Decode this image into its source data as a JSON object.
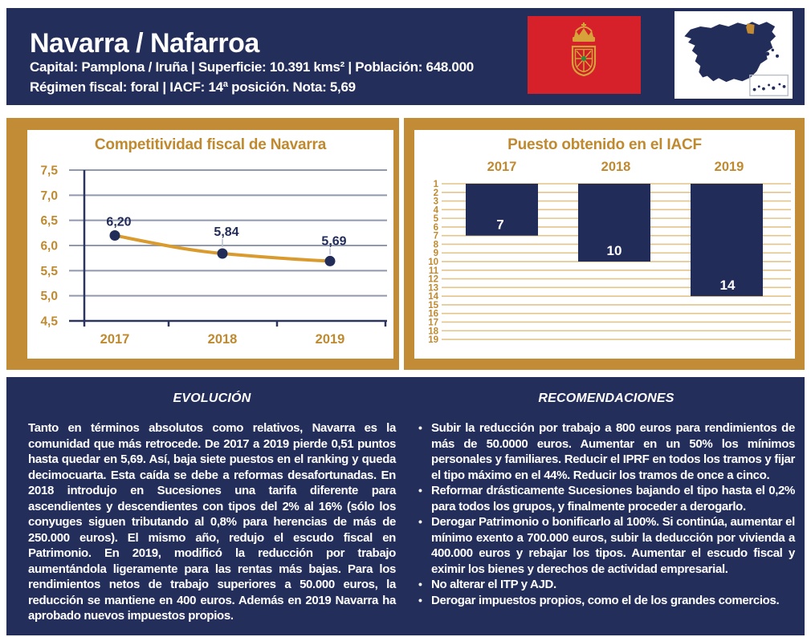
{
  "header": {
    "title": "Navarra / Nafarroa",
    "info_line1": "Capital: Pamplona / Iruña | Superficie: 10.391 kms² | Población: 648.000",
    "info_line2": "Régimen fiscal: foral | IACF: 14ª posición. Nota: 5,69"
  },
  "colors": {
    "navy": "#242E5B",
    "bar_navy": "#222C59",
    "gold_band": "#C28B35",
    "gold_text": "#BF8A2F",
    "line_gold": "#D99A2E",
    "grid_gray_blue": "#9098AE",
    "grid_tan": "#E3C48A",
    "axis_navy": "#2B355E",
    "flag_red": "#D6202A",
    "white": "#FFFFFF"
  },
  "chart_data": [
    {
      "type": "line",
      "title": "Competitividad fiscal de Navarra",
      "x": [
        "2017",
        "2018",
        "2019"
      ],
      "values": [
        6.2,
        5.84,
        5.69
      ],
      "point_labels": [
        "6,20",
        "5,84",
        "5,69"
      ],
      "ylim": [
        4.5,
        7.5
      ],
      "ytick_values": [
        7.5,
        7.0,
        6.5,
        6.0,
        5.5,
        5.0,
        4.5
      ],
      "ytick_labels": [
        "7,5",
        "7,0",
        "6,5",
        "6,0",
        "5,5",
        "5,0",
        "4,5"
      ],
      "grid": true,
      "legend": "none",
      "line_color": "#D99A2E",
      "point_color": "#222C59",
      "grid_color": "#9098AE",
      "axis_color": "#2B355E",
      "tick_color": "#BF8A2F"
    },
    {
      "type": "bar",
      "title": "Puesto obtenido en el IACF",
      "categories": [
        "2017",
        "2018",
        "2019"
      ],
      "values": [
        7,
        10,
        14
      ],
      "value_labels": [
        "7",
        "10",
        "14"
      ],
      "ylim": [
        1,
        19
      ],
      "ytick_values": [
        1,
        2,
        3,
        4,
        5,
        6,
        7,
        8,
        9,
        10,
        11,
        12,
        13,
        14,
        15,
        16,
        17,
        18,
        19
      ],
      "orientation": "bars hang downward from rank 1 (top) to achieved rank",
      "grid": true,
      "legend": "none",
      "bar_color": "#222C59",
      "grid_color": "#E3C48A",
      "tick_color": "#BF8A2F",
      "value_label_color": "#FFFFFF"
    }
  ],
  "evolution": {
    "heading": "EVOLUCIÓN",
    "paragraph": "Tanto en términos absolutos como relativos, Navarra es la comunidad que más retrocede. De 2017 a 2019 pierde 0,51 puntos hasta quedar en 5,69. Así, baja siete puestos en el ranking y queda decimocuarta. Esta caída se debe a reformas desafortunadas. En 2018 introdujo en Sucesiones una tarifa diferente para ascendientes y descendientes con tipos del 2% al 16% (sólo los conyuges siguen tributando al 0,8% para herencias de más de 250.000 euros). El mismo año, redujo el escudo fiscal en Patrimonio. En 2019, modificó la reducción por trabajo aumentándola ligeramente para las rentas más bajas. Para los rendimientos netos de trabajo superiores a 50.000 euros, la reducción se mantiene en 400 euros. Además en 2019 Navarra ha aprobado nuevos impuestos propios."
  },
  "recommendations": {
    "heading": "RECOMENDACIONES",
    "bullets": [
      "Subir la reducción por trabajo a 800 euros para rendimientos de más de 50.0000 euros. Aumentar en un 50% los mínimos personales y familiares. Reducir el IPRF en todos los tramos y fijar el tipo máximo en el 44%. Reducir los tramos de once a cinco.",
      "Reformar drásticamente Sucesiones bajando el tipo hasta el 0,2% para todos los grupos, y finalmente proceder a derogarlo.",
      "Derogar Patrimonio o bonificarlo al 100%. Si continúa, aumentar el mínimo exento a 700.000 euros, subir la deducción por vivienda a 400.000 euros y rebajar los tipos. Aumentar el escudo fiscal y eximir los bienes y derechos de actividad empresarial.",
      "No alterar el ITP y AJD.",
      "Derogar impuestos propios, como el de los grandes comercios."
    ]
  }
}
